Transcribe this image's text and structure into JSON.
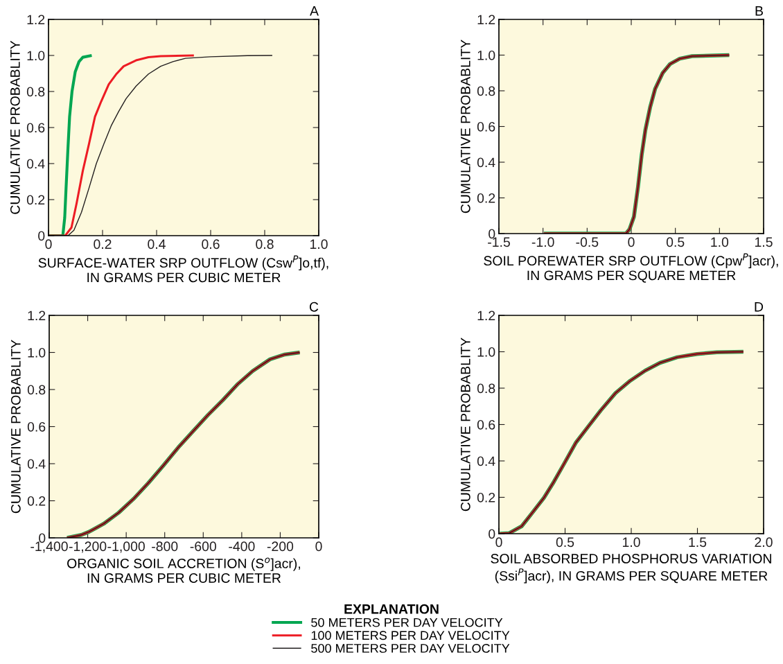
{
  "chart_data": [
    {
      "type": "line",
      "title": "A",
      "xlabel": "SURFACE-WATER SRP OUTFLOW (Csw$^{P}$]o,tf),\nIN GRAMS PER CUBIC METER",
      "ylabel": "CUMULATIVE PROBABLITY",
      "legend_title": "EXPLANATION",
      "legend": "bottom",
      "grid": false,
      "xlim": [
        0,
        1.0
      ],
      "xticks": [
        0,
        {
          "value": 0.2,
          "label": "0.2"
        },
        {
          "value": 0.4,
          "label": "0.4"
        },
        {
          "value": 0.6,
          "label": "0.6"
        },
        {
          "value": 0.8,
          "label": "0.8"
        },
        {
          "value": 1.0,
          "label": "1.0"
        }
      ],
      "ylim": [
        0,
        1.2
      ],
      "yticks": [
        0,
        {
          "value": 0.2,
          "label": "0.2"
        },
        {
          "value": 0.4,
          "label": "0.4"
        },
        {
          "value": 0.6,
          "label": "0.6"
        },
        {
          "value": 0.8,
          "label": "0.8"
        },
        {
          "value": 1.0,
          "label": "1.0"
        },
        {
          "value": 1.2,
          "label": "1.2"
        }
      ],
      "series": [
        {
          "name": "50 METERS PER DAY VELOCITY",
          "color": "#00a651",
          "x": [
            0,
            0.053,
            0.06,
            0.065,
            0.072,
            0.078,
            0.087,
            0.099,
            0.113,
            0.127,
            0.16
          ],
          "values": [
            0,
            0,
            0.1,
            0.265,
            0.485,
            0.66,
            0.8,
            0.91,
            0.966,
            0.99,
            1.0
          ]
        },
        {
          "name": "100 METERS PER DAY VELOCITY",
          "color": "#ed1c24",
          "x": [
            0,
            0.062,
            0.085,
            0.104,
            0.127,
            0.15,
            0.172,
            0.195,
            0.223,
            0.25,
            0.278,
            0.324,
            0.37,
            0.415,
            0.538
          ],
          "values": [
            0,
            0,
            0.045,
            0.18,
            0.36,
            0.51,
            0.66,
            0.745,
            0.84,
            0.895,
            0.94,
            0.973,
            0.99,
            0.996,
            1.0
          ]
        },
        {
          "name": "500 METERS PER DAY VELOCITY",
          "color": "#231f20",
          "x": [
            0,
            0.072,
            0.094,
            0.122,
            0.15,
            0.177,
            0.205,
            0.232,
            0.26,
            0.287,
            0.324,
            0.37,
            0.415,
            0.461,
            0.507,
            0.6,
            0.737,
            0.828
          ],
          "values": [
            0,
            0,
            0.03,
            0.13,
            0.265,
            0.4,
            0.51,
            0.61,
            0.69,
            0.76,
            0.83,
            0.897,
            0.94,
            0.966,
            0.984,
            0.993,
            0.999,
            1.0
          ]
        }
      ]
    },
    {
      "type": "line",
      "title": "B",
      "xlabel": "SOIL POREWATER SRP OUTFLOW (Cpw$^{P}$]acr),\nIN GRAMS PER SQUARE METER",
      "ylabel": "CUMULATIVE PROBABLITY",
      "grid": false,
      "xlim": [
        -1.5,
        1.5
      ],
      "xticks": [
        {
          "value": -1.5,
          "label": "-1.5"
        },
        {
          "value": -1.0,
          "label": "-1.0"
        },
        {
          "value": -0.5,
          "label": "-0.5"
        },
        0,
        {
          "value": 0.5,
          "label": "0.5"
        },
        {
          "value": 1.0,
          "label": "1.0"
        },
        {
          "value": 1.5,
          "label": "1.5"
        }
      ],
      "ylim": [
        0,
        1.2
      ],
      "yticks": [
        0,
        {
          "value": 0.2,
          "label": "0.2"
        },
        {
          "value": 0.4,
          "label": "0.4"
        },
        {
          "value": 0.6,
          "label": "0.6"
        },
        {
          "value": 0.8,
          "label": "0.8"
        },
        {
          "value": 1.0,
          "label": "1.0"
        },
        {
          "value": 1.2,
          "label": "1.2"
        }
      ],
      "series": [
        {
          "color": "#00a651",
          "x": [
            -0.99,
            -0.06,
            -0.02,
            0.03,
            0.076,
            0.118,
            0.16,
            0.215,
            0.27,
            0.356,
            0.44,
            0.55,
            0.69,
            1.11
          ],
          "values": [
            0,
            0,
            0.024,
            0.094,
            0.26,
            0.44,
            0.58,
            0.71,
            0.81,
            0.9,
            0.95,
            0.98,
            0.994,
            1.0
          ]
        },
        {
          "color": "#ed1c24",
          "x": [
            -0.99,
            -0.06,
            -0.02,
            0.03,
            0.076,
            0.118,
            0.16,
            0.215,
            0.27,
            0.356,
            0.44,
            0.55,
            0.69,
            1.11
          ],
          "values": [
            0,
            0,
            0.024,
            0.094,
            0.26,
            0.44,
            0.58,
            0.71,
            0.81,
            0.9,
            0.95,
            0.98,
            0.994,
            1.0
          ]
        },
        {
          "color": "#231f20",
          "x": [
            -0.99,
            -0.06,
            -0.02,
            0.03,
            0.076,
            0.118,
            0.16,
            0.215,
            0.27,
            0.356,
            0.44,
            0.55,
            0.69,
            1.11
          ],
          "values": [
            0,
            0,
            0.024,
            0.094,
            0.26,
            0.44,
            0.58,
            0.71,
            0.81,
            0.9,
            0.95,
            0.98,
            0.994,
            1.0
          ]
        }
      ]
    },
    {
      "type": "line",
      "title": "C",
      "xlabel": "ORGANIC SOIL ACCRETION (S$^{o}$]acr),\nIN GRAMS PER CUBIC METER",
      "ylabel": "CUMULATIVE PROBABLITY",
      "grid": false,
      "xlim": [
        -1400,
        0
      ],
      "xticks": [
        {
          "value": -1400,
          "label": "-1,400"
        },
        {
          "value": -1200,
          "label": "-1,200"
        },
        {
          "value": -1000,
          "label": "-1,000"
        },
        {
          "value": -800,
          "label": "-800"
        },
        {
          "value": -600,
          "label": "-600"
        },
        {
          "value": -400,
          "label": "-400"
        },
        {
          "value": -200,
          "label": "-200"
        },
        0
      ],
      "ylim": [
        0,
        1.2
      ],
      "yticks": [
        0,
        {
          "value": 0.2,
          "label": "0.2"
        },
        {
          "value": 0.4,
          "label": "0.4"
        },
        {
          "value": 0.6,
          "label": "0.6"
        },
        {
          "value": 0.8,
          "label": "0.8"
        },
        {
          "value": 1.0,
          "label": "1.0"
        },
        {
          "value": 1.2,
          "label": "1.2"
        }
      ],
      "series": [
        {
          "color": "#00a651",
          "x": [
            -1307,
            -1233,
            -1194,
            -1117,
            -1039,
            -962,
            -885,
            -807,
            -730,
            -652,
            -575,
            -498,
            -420,
            -343,
            -253,
            -176,
            -99
          ],
          "values": [
            0,
            0.016,
            0.032,
            0.076,
            0.136,
            0.21,
            0.296,
            0.39,
            0.487,
            0.576,
            0.663,
            0.743,
            0.83,
            0.9,
            0.963,
            0.989,
            1.0
          ]
        },
        {
          "color": "#ed1c24",
          "x": [
            -1307,
            -1233,
            -1194,
            -1117,
            -1039,
            -962,
            -885,
            -807,
            -730,
            -652,
            -575,
            -498,
            -420,
            -343,
            -253,
            -176,
            -99
          ],
          "values": [
            0,
            0.016,
            0.032,
            0.076,
            0.136,
            0.21,
            0.296,
            0.39,
            0.487,
            0.576,
            0.663,
            0.743,
            0.83,
            0.9,
            0.963,
            0.989,
            1.0
          ]
        },
        {
          "color": "#231f20",
          "x": [
            -1307,
            -1233,
            -1194,
            -1117,
            -1039,
            -962,
            -885,
            -807,
            -730,
            -652,
            -575,
            -498,
            -420,
            -343,
            -253,
            -176,
            -99
          ],
          "values": [
            0,
            0.016,
            0.032,
            0.076,
            0.136,
            0.21,
            0.296,
            0.39,
            0.487,
            0.576,
            0.663,
            0.743,
            0.83,
            0.9,
            0.963,
            0.989,
            1.0
          ]
        }
      ]
    },
    {
      "type": "line",
      "title": "D",
      "xlabel": "SOIL ABSORBED PHOSPHORUS VARIATION\n(Ssi$^{P}$]acr), IN GRAMS PER SQUARE METER",
      "ylabel": "CUMULATIVE PROBABLITY",
      "grid": false,
      "xlim": [
        0,
        2.0
      ],
      "xticks": [
        0,
        {
          "value": 0.5,
          "label": "0.5"
        },
        {
          "value": 1.0,
          "label": "1.0"
        },
        {
          "value": 1.5,
          "label": "1.5"
        },
        {
          "value": 2.0,
          "label": "2.0"
        }
      ],
      "ylim": [
        0,
        1.2
      ],
      "yticks": [
        0,
        {
          "value": 0.2,
          "label": "0.2"
        },
        {
          "value": 0.4,
          "label": "0.4"
        },
        {
          "value": 0.6,
          "label": "0.6"
        },
        {
          "value": 0.8,
          "label": "0.8"
        },
        {
          "value": 1.0,
          "label": "1.0"
        },
        {
          "value": 1.2,
          "label": "1.2"
        }
      ],
      "series": [
        {
          "color": "#00a651",
          "x": [
            0.007,
            0.078,
            0.172,
            0.246,
            0.34,
            0.415,
            0.489,
            0.583,
            0.676,
            0.77,
            0.881,
            0.993,
            1.105,
            1.217,
            1.348,
            1.498,
            1.647,
            1.847
          ],
          "values": [
            0,
            0.003,
            0.041,
            0.109,
            0.197,
            0.285,
            0.38,
            0.502,
            0.59,
            0.678,
            0.773,
            0.841,
            0.896,
            0.939,
            0.97,
            0.988,
            0.997,
            1.0
          ]
        },
        {
          "color": "#ed1c24",
          "x": [
            0.007,
            0.078,
            0.172,
            0.246,
            0.34,
            0.415,
            0.489,
            0.583,
            0.676,
            0.77,
            0.881,
            0.993,
            1.105,
            1.217,
            1.348,
            1.498,
            1.647,
            1.847
          ],
          "values": [
            0,
            0.003,
            0.041,
            0.109,
            0.197,
            0.285,
            0.38,
            0.502,
            0.59,
            0.678,
            0.773,
            0.841,
            0.896,
            0.939,
            0.97,
            0.988,
            0.997,
            1.0
          ]
        },
        {
          "color": "#231f20",
          "x": [
            0.007,
            0.078,
            0.172,
            0.246,
            0.34,
            0.415,
            0.489,
            0.583,
            0.676,
            0.77,
            0.881,
            0.993,
            1.105,
            1.217,
            1.348,
            1.498,
            1.647,
            1.847
          ],
          "values": [
            0,
            0.003,
            0.041,
            0.109,
            0.197,
            0.285,
            0.38,
            0.502,
            0.59,
            0.678,
            0.773,
            0.841,
            0.896,
            0.939,
            0.97,
            0.988,
            0.997,
            1.0
          ]
        }
      ]
    }
  ]
}
